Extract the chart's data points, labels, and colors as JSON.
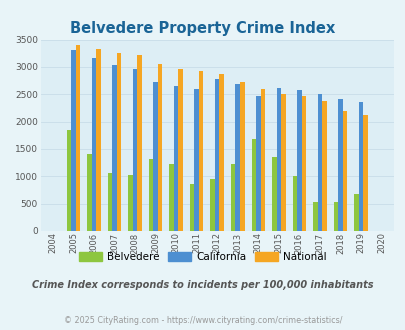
{
  "title": "Belvedere Property Crime Index",
  "title_color": "#1a6496",
  "years": [
    "2004",
    "2005",
    "2006",
    "2007",
    "2008",
    "2009",
    "2010",
    "2011",
    "2012",
    "2013",
    "2014",
    "2015",
    "2016",
    "2017",
    "2018",
    "2019",
    "2020"
  ],
  "belvedere": [
    0,
    1850,
    1400,
    1060,
    1020,
    1310,
    1230,
    860,
    960,
    1230,
    1680,
    1350,
    1010,
    530,
    530,
    680,
    0
  ],
  "california": [
    0,
    3310,
    3160,
    3030,
    2960,
    2730,
    2650,
    2590,
    2775,
    2680,
    2460,
    2620,
    2570,
    2510,
    2410,
    2360,
    0
  ],
  "national": [
    0,
    3400,
    3320,
    3250,
    3210,
    3060,
    2960,
    2920,
    2870,
    2720,
    2600,
    2500,
    2460,
    2370,
    2200,
    2120,
    0
  ],
  "belvedere_color": "#8dc63f",
  "california_color": "#4d8fd1",
  "national_color": "#f5a623",
  "bg_color": "#e8f4f8",
  "plot_bg": "#ddeef5",
  "subtitle": "Crime Index corresponds to incidents per 100,000 inhabitants",
  "footer": "© 2025 CityRating.com - https://www.cityrating.com/crime-statistics/",
  "footer_color": "#999999",
  "subtitle_color": "#555555",
  "ylim": [
    0,
    3500
  ],
  "yticks": [
    0,
    500,
    1000,
    1500,
    2000,
    2500,
    3000,
    3500
  ],
  "bar_width": 0.22,
  "grid_color": "#c8dde8"
}
